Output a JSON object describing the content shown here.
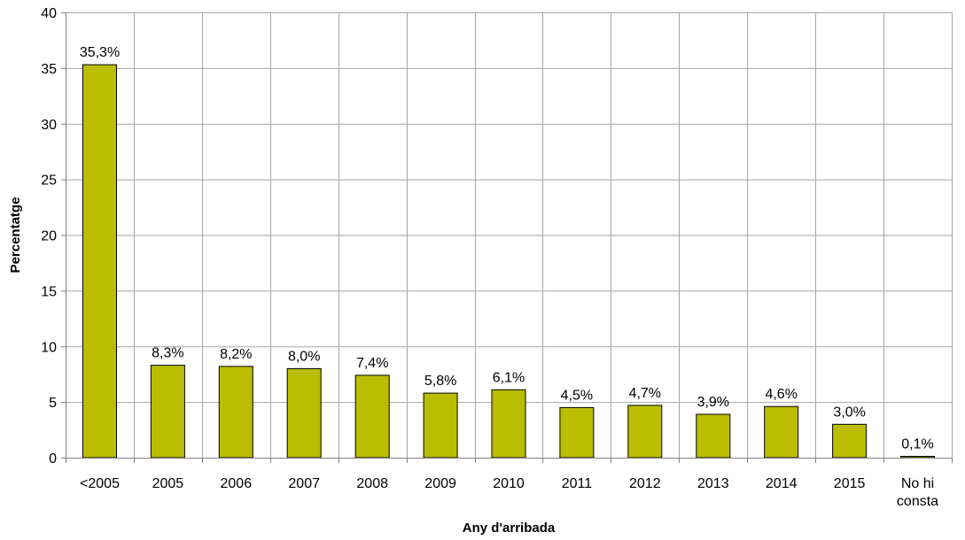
{
  "chart_data": {
    "type": "bar",
    "title": "",
    "xlabel": "Any d'arribada",
    "ylabel": "Percentatge",
    "ylim": [
      0,
      40
    ],
    "yticks": [
      "0",
      "5",
      "10",
      "15",
      "20",
      "25",
      "30",
      "35",
      "40"
    ],
    "categories": [
      [
        "<2005"
      ],
      [
        "2005"
      ],
      [
        "2006"
      ],
      [
        "2007"
      ],
      [
        "2008"
      ],
      [
        "2009"
      ],
      [
        "2010"
      ],
      [
        "2011"
      ],
      [
        "2012"
      ],
      [
        "2013"
      ],
      [
        "2014"
      ],
      [
        "2015"
      ],
      [
        "No hi",
        "consta"
      ]
    ],
    "values": [
      35.3,
      8.3,
      8.2,
      8.0,
      7.4,
      5.8,
      6.1,
      4.5,
      4.7,
      3.9,
      4.6,
      3.0,
      0.1
    ],
    "data_labels": [
      "35,3%",
      "8,3%",
      "8,2%",
      "8,0%",
      "7,4%",
      "5,8%",
      "6,1%",
      "4,5%",
      "4,7%",
      "3,9%",
      "4,6%",
      "3,0%",
      "0,1%"
    ],
    "grid": true,
    "legend": "none",
    "colors": {
      "bar_fill": "#BABD00",
      "bar_stroke": "#000000",
      "grid": "#A6A6A6",
      "axis": "#808080"
    }
  }
}
